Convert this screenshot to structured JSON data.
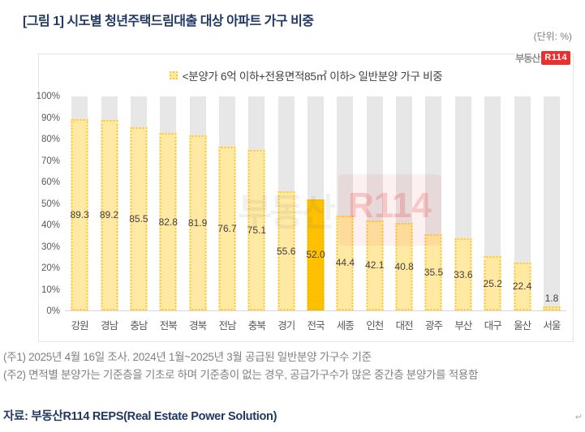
{
  "header": {
    "title": "[그림 1] 시도별 청년주택드림대출 대상 아파트 가구 비중",
    "unit_label": "(단위: %)"
  },
  "panel": {
    "logo_prefix": "부동산",
    "logo_brand": "R114",
    "watermark_prefix": "부동산",
    "watermark_brand": "R114"
  },
  "chart_data": {
    "type": "bar",
    "title": "<분양가 6억 이하+전용면적85㎡ 이하> 일반분양 가구 비중",
    "categories": [
      "강원",
      "경남",
      "충남",
      "전북",
      "경북",
      "전남",
      "충북",
      "경기",
      "전국",
      "세종",
      "인천",
      "대전",
      "광주",
      "부산",
      "대구",
      "울산",
      "서울"
    ],
    "values": [
      89.3,
      89.2,
      85.5,
      82.8,
      81.9,
      76.7,
      75.1,
      55.6,
      52.0,
      44.4,
      42.1,
      40.8,
      35.5,
      33.6,
      25.2,
      22.4,
      1.8
    ],
    "value_labels": [
      "89.3",
      "89.2",
      "85.5",
      "82.8",
      "81.9",
      "76.7",
      "75.1",
      "55.6",
      "52.0",
      "44.4",
      "42.1",
      "40.8",
      "35.5",
      "33.6",
      "25.2",
      "22.4",
      "1.8"
    ],
    "highlight_category": "전국",
    "xlabel": "",
    "ylabel": "",
    "unit": "%",
    "ylim": [
      0,
      100
    ],
    "y_ticks": [
      "0%",
      "10%",
      "20%",
      "30%",
      "40%",
      "50%",
      "60%",
      "70%",
      "80%",
      "90%",
      "100%"
    ],
    "grid": false,
    "legend_position": "top-center",
    "colors": {
      "bar_fill": "#FFE9A3",
      "bar_border": "#FFC637",
      "highlight_fill": "#FFC000",
      "track": "#E8E7E7",
      "title_navy": "#1F3864",
      "logo_red": "#E8302E"
    }
  },
  "footnotes": {
    "note1": "(주1) 2025년 4월 16일 조사. 2024년 1월~2025년 3월 공급된 일반분양 가구수 기준",
    "note2": "(주2) 면적별 분양가는 기준층을 기초로 하며 기준층이 없는 경우, 공급가구수가 많은 중간층 분양가를 적용함",
    "source": "자료: 부동산R114 REPS(Real Estate Power Solution)",
    "paragraph_mark": "↵"
  }
}
